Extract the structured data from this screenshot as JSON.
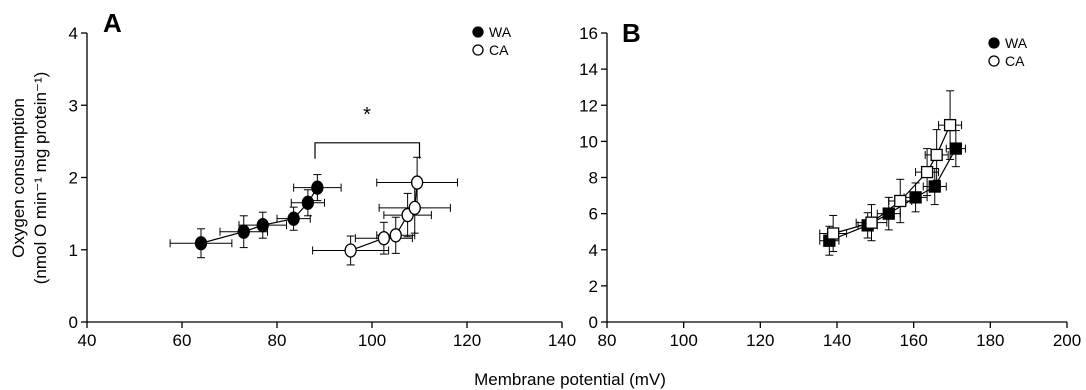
{
  "figure": {
    "xlabel": "Membrane potential (mV)",
    "ylabel_line1": "Oxygen consumption",
    "ylabel_line2": "(nmol O min⁻¹ mg protein⁻¹)"
  },
  "chart_data": [
    {
      "type": "scatter",
      "panel": "A",
      "xlim": [
        40,
        140
      ],
      "ylim": [
        0,
        4
      ],
      "xticks": [
        40,
        60,
        80,
        100,
        120,
        140
      ],
      "yticks": [
        0,
        1,
        2,
        3,
        4
      ],
      "legend_position": "top-right",
      "marker_shape": "circle",
      "annotation": "*",
      "series": [
        {
          "name": "WA",
          "filled": true,
          "points": [
            {
              "x": 64,
              "y": 1.09,
              "xerr": 6.5,
              "yerr": 0.2
            },
            {
              "x": 73,
              "y": 1.25,
              "xerr": 5,
              "yerr": 0.22
            },
            {
              "x": 77,
              "y": 1.34,
              "xerr": 5,
              "yerr": 0.18
            },
            {
              "x": 83.5,
              "y": 1.43,
              "xerr": 3.5,
              "yerr": 0.16
            },
            {
              "x": 86.5,
              "y": 1.65,
              "xerr": 3.5,
              "yerr": 0.18
            },
            {
              "x": 88.5,
              "y": 1.86,
              "xerr": 5,
              "yerr": 0.18
            }
          ]
        },
        {
          "name": "CA",
          "filled": false,
          "points": [
            {
              "x": 95.5,
              "y": 0.99,
              "xerr": 8,
              "yerr": 0.2
            },
            {
              "x": 102.5,
              "y": 1.16,
              "xerr": 6,
              "yerr": 0.22
            },
            {
              "x": 105,
              "y": 1.2,
              "xerr": 4,
              "yerr": 0.25
            },
            {
              "x": 107.5,
              "y": 1.48,
              "xerr": 5,
              "yerr": 0.3
            },
            {
              "x": 109,
              "y": 1.58,
              "xerr": 7.5,
              "yerr": 0.35
            },
            {
              "x": 109.5,
              "y": 1.93,
              "xerr": 8.5,
              "yerr": 0.35
            }
          ]
        }
      ],
      "significance_bracket": {
        "x1": 88,
        "x2": 110,
        "y": 2.48,
        "drop": 0.22
      }
    },
    {
      "type": "scatter",
      "panel": "B",
      "xlim": [
        80,
        200
      ],
      "ylim": [
        0,
        16
      ],
      "xticks": [
        80,
        100,
        120,
        140,
        160,
        180,
        200
      ],
      "yticks": [
        0,
        2,
        4,
        6,
        8,
        10,
        12,
        14,
        16
      ],
      "legend_position": "top-right",
      "legend_marker_shape": "circle",
      "marker_shape": "square",
      "series": [
        {
          "name": "WA",
          "filled": true,
          "points": [
            {
              "x": 138,
              "y": 4.5,
              "xerr": 2.5,
              "yerr": 0.8
            },
            {
              "x": 148,
              "y": 5.35,
              "xerr": 2.5,
              "yerr": 0.7
            },
            {
              "x": 153.5,
              "y": 6.0,
              "xerr": 3,
              "yerr": 0.9
            },
            {
              "x": 160.5,
              "y": 6.9,
              "xerr": 3,
              "yerr": 0.8
            },
            {
              "x": 165.5,
              "y": 7.5,
              "xerr": 3,
              "yerr": 1.0
            },
            {
              "x": 171,
              "y": 9.6,
              "xerr": 2.5,
              "yerr": 1.0
            }
          ]
        },
        {
          "name": "CA",
          "filled": false,
          "points": [
            {
              "x": 139,
              "y": 4.9,
              "xerr": 3.5,
              "yerr": 1.0
            },
            {
              "x": 149,
              "y": 5.5,
              "xerr": 4,
              "yerr": 1.0
            },
            {
              "x": 156.5,
              "y": 6.7,
              "xerr": 3,
              "yerr": 1.2
            },
            {
              "x": 163.5,
              "y": 8.3,
              "xerr": 3,
              "yerr": 1.3
            },
            {
              "x": 166,
              "y": 9.25,
              "xerr": 3,
              "yerr": 1.4
            },
            {
              "x": 169.5,
              "y": 10.9,
              "xerr": 3,
              "yerr": 1.9
            }
          ]
        }
      ]
    }
  ]
}
